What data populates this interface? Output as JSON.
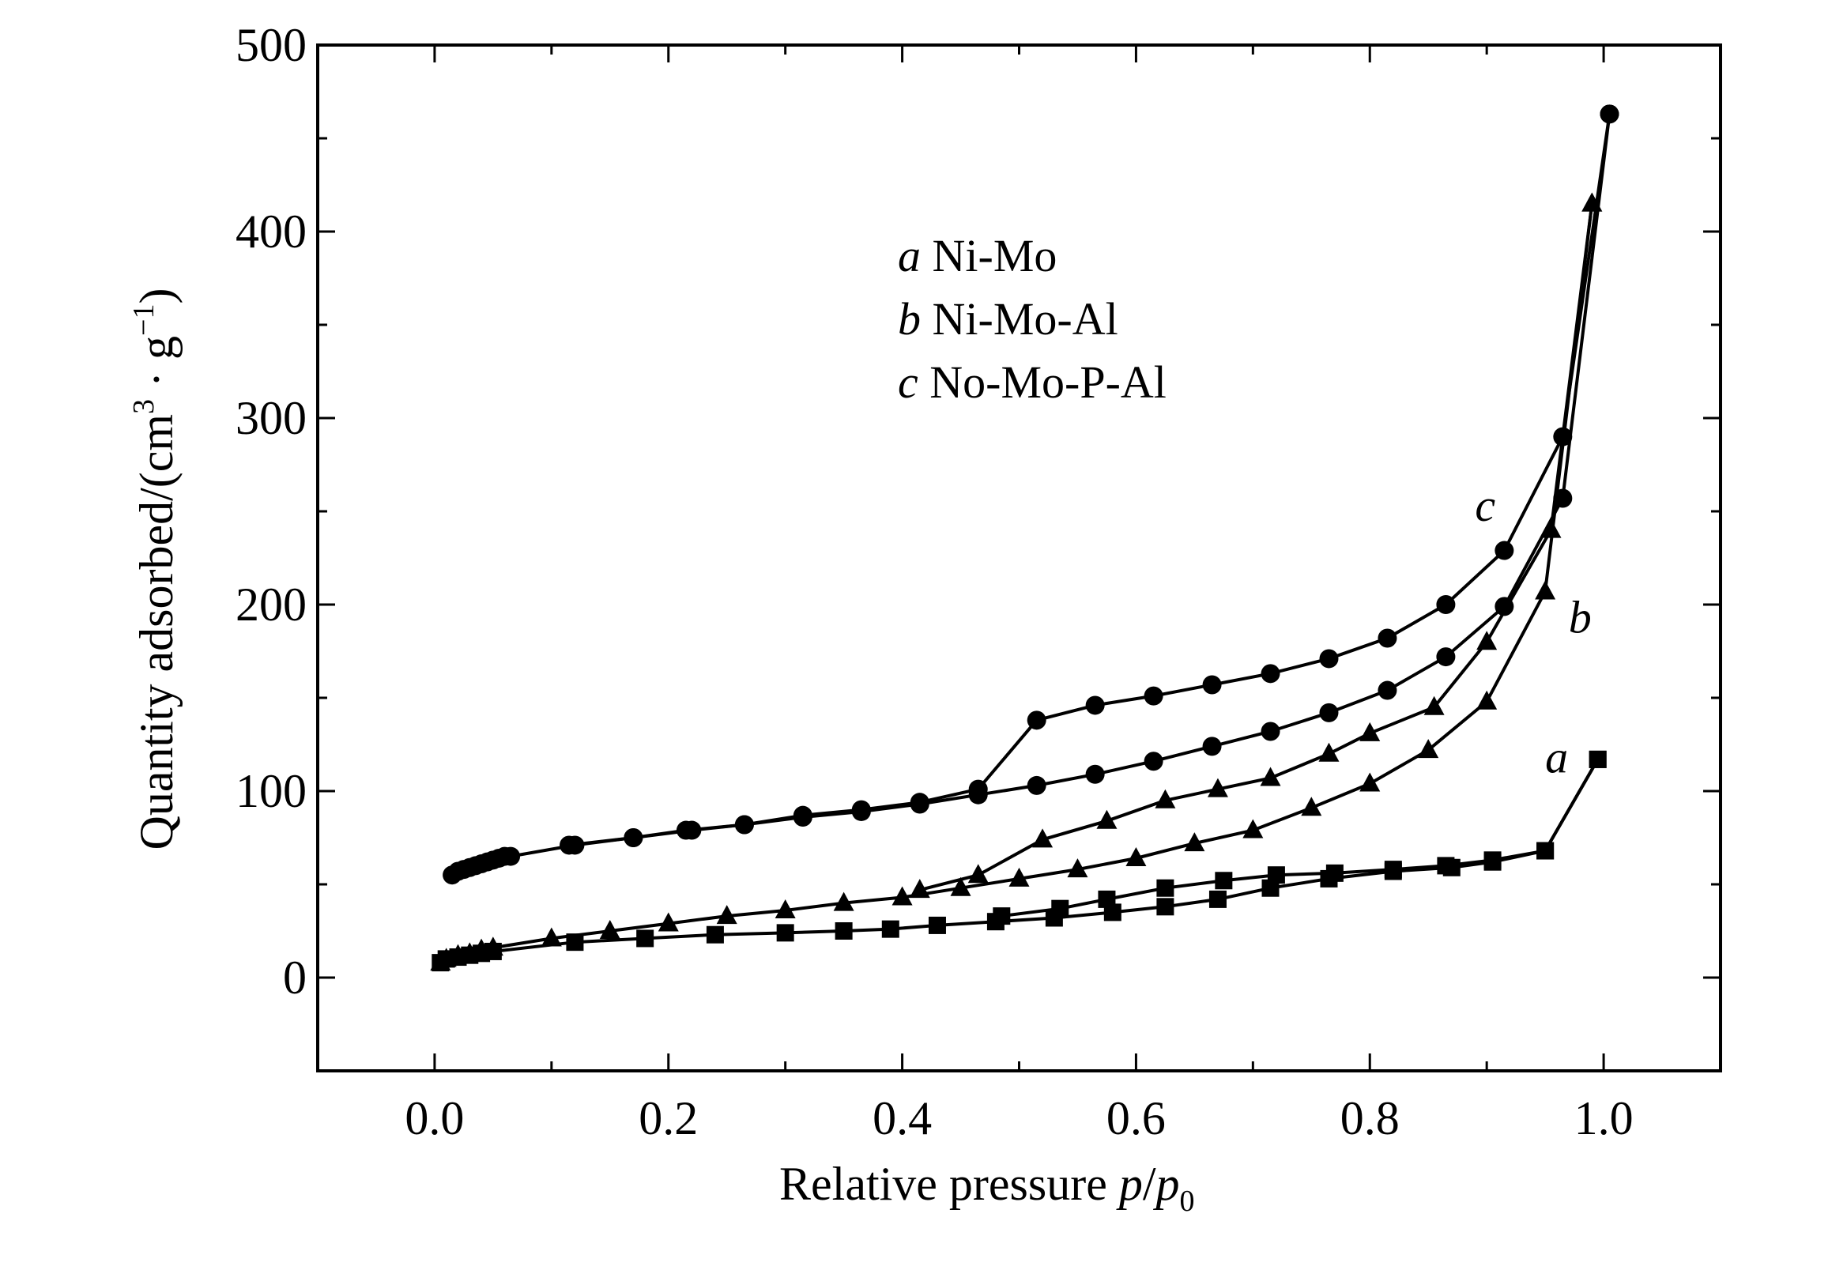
{
  "chart_data": {
    "type": "line",
    "xlabel_main": "Relative pressure ",
    "xlabel_var_p": "p",
    "xlabel_slash": "/",
    "xlabel_var_p0": "p",
    "xlabel_sub": "0",
    "ylabel_main": "Quantity adsorbed/(cm",
    "ylabel_sup3": "3",
    "ylabel_mid": " · g",
    "ylabel_supneg1": "−1",
    "ylabel_end": ")",
    "xlim": [
      -0.1,
      1.1
    ],
    "ylim": [
      -50,
      500
    ],
    "xticks": [
      "0.0",
      "0.2",
      "0.4",
      "0.6",
      "0.8",
      "1.0"
    ],
    "yticks": [
      "0",
      "100",
      "200",
      "300",
      "400",
      "500"
    ],
    "legend": [
      {
        "letter": "a",
        "text": " Ni-Mo"
      },
      {
        "letter": "b",
        "text": " Ni-Mo-Al"
      },
      {
        "letter": "c",
        "text": " No-Mo-P-Al"
      }
    ],
    "curve_labels": [
      {
        "letter": "a",
        "x": 0.95,
        "y": 110
      },
      {
        "letter": "b",
        "x": 0.97,
        "y": 185
      },
      {
        "letter": "c",
        "x": 0.89,
        "y": 245
      }
    ],
    "series": [
      {
        "marker": "square",
        "branch": "adsorption",
        "x": [
          0.005,
          0.01,
          0.02,
          0.03,
          0.04,
          0.05,
          0.12,
          0.18,
          0.24,
          0.3,
          0.35,
          0.39,
          0.43,
          0.48,
          0.53,
          0.58,
          0.625,
          0.67,
          0.715,
          0.765,
          0.82,
          0.87,
          0.905,
          0.95,
          0.995
        ],
        "y": [
          8,
          10,
          11,
          12,
          13,
          14,
          19,
          21,
          23,
          24,
          25,
          26,
          28,
          30,
          32,
          35,
          38,
          42,
          48,
          53,
          57,
          59,
          62,
          68,
          117
        ]
      },
      {
        "marker": "square",
        "branch": "desorption",
        "x": [
          0.995,
          0.95,
          0.905,
          0.865,
          0.82,
          0.77,
          0.72,
          0.675,
          0.625,
          0.575,
          0.535,
          0.485
        ],
        "y": [
          117,
          68,
          63,
          60,
          58,
          56,
          55,
          52,
          48,
          42,
          37,
          33
        ]
      },
      {
        "marker": "triangle",
        "branch": "adsorption",
        "x": [
          0.005,
          0.01,
          0.02,
          0.03,
          0.04,
          0.05,
          0.1,
          0.15,
          0.2,
          0.25,
          0.3,
          0.35,
          0.4,
          0.45,
          0.5,
          0.55,
          0.6,
          0.65,
          0.7,
          0.75,
          0.8,
          0.85,
          0.9,
          0.95,
          0.99
        ],
        "y": [
          8,
          10,
          12,
          13,
          15,
          16,
          21,
          25,
          29,
          33,
          36,
          40,
          43,
          48,
          53,
          58,
          64,
          72,
          79,
          91,
          104,
          122,
          148,
          207,
          415
        ]
      },
      {
        "marker": "triangle",
        "branch": "desorption",
        "x": [
          0.99,
          0.955,
          0.9,
          0.855,
          0.8,
          0.765,
          0.715,
          0.67,
          0.625,
          0.575,
          0.52,
          0.465,
          0.415
        ],
        "y": [
          415,
          240,
          180,
          145,
          131,
          120,
          107,
          101,
          95,
          84,
          74,
          55,
          47
        ]
      },
      {
        "marker": "circle",
        "branch": "adsorption",
        "x": [
          0.015,
          0.02,
          0.025,
          0.03,
          0.035,
          0.04,
          0.045,
          0.05,
          0.055,
          0.06,
          0.065,
          0.12,
          0.17,
          0.22,
          0.265,
          0.315,
          0.365,
          0.415,
          0.465,
          0.515,
          0.565,
          0.615,
          0.665,
          0.715,
          0.765,
          0.815,
          0.865,
          0.915,
          0.965,
          1.005
        ],
        "y": [
          55,
          57,
          58,
          59,
          60,
          61,
          62,
          63,
          64,
          65,
          65,
          71,
          75,
          79,
          82,
          86,
          89,
          93,
          98,
          103,
          109,
          116,
          124,
          132,
          142,
          154,
          172,
          199,
          257,
          463
        ]
      },
      {
        "marker": "circle",
        "branch": "desorption",
        "x": [
          1.005,
          0.965,
          0.915,
          0.865,
          0.815,
          0.765,
          0.715,
          0.665,
          0.615,
          0.565,
          0.515,
          0.465,
          0.415,
          0.365,
          0.315,
          0.265,
          0.215,
          0.17,
          0.115
        ],
        "y": [
          463,
          290,
          229,
          200,
          182,
          171,
          163,
          157,
          151,
          146,
          138,
          101,
          94,
          90,
          87,
          82,
          79,
          75,
          71
        ]
      }
    ]
  }
}
